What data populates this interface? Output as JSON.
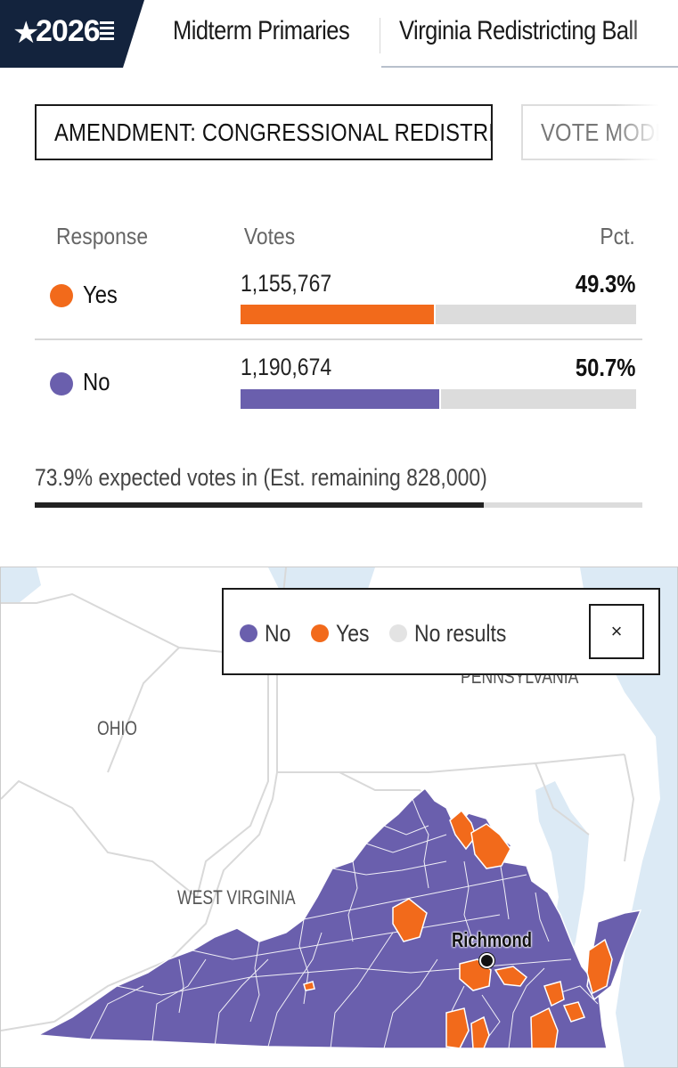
{
  "nav": {
    "logo_text": "2026",
    "tabs": [
      {
        "label": "Midterm Primaries"
      },
      {
        "label": "Virginia Redistricting Ball"
      }
    ]
  },
  "selector": {
    "active_label": "AMENDMENT: CONGRESSIONAL REDISTRICTING",
    "inactive_label": "VOTE MODE"
  },
  "results": {
    "headers": {
      "response": "Response",
      "votes": "Votes",
      "pct": "Pct."
    },
    "rows": [
      {
        "label": "Yes",
        "votes": "1,155,767",
        "pct": "49.3%",
        "share": 49.3,
        "color": "#f26a1b"
      },
      {
        "label": "No",
        "votes": "1,190,674",
        "pct": "50.7%",
        "share": 50.7,
        "color": "#6a5fad"
      }
    ],
    "expected_text": "73.9% expected votes in (Est. remaining 828,000)",
    "expected_share": 73.9
  },
  "map": {
    "legend": [
      {
        "label": "No",
        "color": "#6a5fad"
      },
      {
        "label": "Yes",
        "color": "#f26a1b"
      },
      {
        "label": "No results",
        "color": "#e3e3e3"
      }
    ],
    "close_icon": "×",
    "state_labels": {
      "ohio": "OHIO",
      "west_virginia": "WEST VIRGINIA",
      "pennsylvania": "PENNSYLVANIA"
    },
    "city": "Richmond",
    "colors": {
      "no": "#6a5fad",
      "yes": "#f26a1b",
      "water": "#dceaf5",
      "land": "#ffffff",
      "border": "#d9d9d9"
    }
  },
  "colors": {
    "navy": "#13233d",
    "accent_orange": "#f26a1b",
    "accent_purple": "#6a5fad"
  }
}
